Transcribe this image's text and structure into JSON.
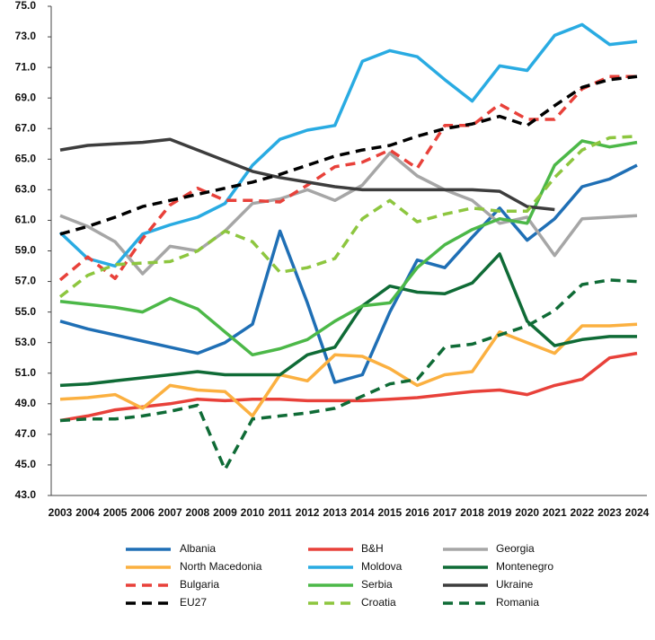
{
  "chart_data": {
    "type": "line",
    "categories": [
      "2003",
      "2004",
      "2005",
      "2006",
      "2007",
      "2008",
      "2009",
      "2010",
      "2011",
      "2012",
      "2013",
      "2014",
      "2015",
      "2016",
      "2017",
      "2018",
      "2019",
      "2020",
      "2021",
      "2022",
      "2023",
      "2024"
    ],
    "ylim": [
      43,
      75
    ],
    "yticks": [
      {
        "value": 43,
        "label": "43.0"
      },
      {
        "value": 45,
        "label": "45.0"
      },
      {
        "value": 47,
        "label": "47.0"
      },
      {
        "value": 49,
        "label": "49.0"
      },
      {
        "value": 51,
        "label": "51.0"
      },
      {
        "value": 53,
        "label": "53.0"
      },
      {
        "value": 55,
        "label": "55.0"
      },
      {
        "value": 57,
        "label": "57.0"
      },
      {
        "value": 59,
        "label": "59.0"
      },
      {
        "value": 61,
        "label": "61.0"
      },
      {
        "value": 63,
        "label": "63.0"
      },
      {
        "value": 65,
        "label": "65.0"
      },
      {
        "value": 67,
        "label": "67.0"
      },
      {
        "value": 69,
        "label": "69.0"
      },
      {
        "value": 71,
        "label": "71.0"
      },
      {
        "value": 73,
        "label": "73.0"
      },
      {
        "value": 75,
        "label": "75.0"
      }
    ],
    "grid": false,
    "legend": "bottom",
    "series": [
      {
        "name": "Albania",
        "color": "#1f6fb5",
        "dashed": false,
        "values": [
          54.4,
          53.9,
          53.5,
          53.1,
          52.7,
          52.3,
          53.0,
          54.2,
          60.3,
          55.6,
          50.4,
          50.9,
          55.0,
          58.4,
          57.9,
          59.9,
          61.8,
          59.7,
          61.1,
          63.2,
          63.7,
          64.6
        ]
      },
      {
        "name": "B&H",
        "color": "#e8413a",
        "dashed": false,
        "values": [
          47.9,
          48.2,
          48.6,
          48.8,
          49.0,
          49.3,
          49.2,
          49.3,
          49.3,
          49.2,
          49.2,
          49.2,
          49.3,
          49.4,
          49.6,
          49.8,
          49.9,
          49.6,
          50.2,
          50.6,
          52.0,
          52.3
        ]
      },
      {
        "name": "Georgia",
        "color": "#a6a6a6",
        "dashed": false,
        "values": [
          61.3,
          60.6,
          59.6,
          57.5,
          59.3,
          59.0,
          60.3,
          62.1,
          62.4,
          63.0,
          62.3,
          63.3,
          65.4,
          63.9,
          63.0,
          62.3,
          60.8,
          61.2,
          58.7,
          61.1,
          61.2,
          61.3
        ]
      },
      {
        "name": "North Macedonia",
        "color": "#fbb040",
        "dashed": false,
        "values": [
          49.3,
          49.4,
          49.6,
          48.7,
          50.2,
          49.9,
          49.8,
          48.2,
          50.9,
          50.5,
          52.2,
          52.1,
          51.3,
          50.2,
          50.9,
          51.1,
          53.7,
          53.0,
          52.3,
          54.1,
          54.1,
          54.2
        ]
      },
      {
        "name": "Moldova",
        "color": "#29abe2",
        "dashed": false,
        "values": [
          60.2,
          58.5,
          58.0,
          60.1,
          60.7,
          61.2,
          62.1,
          64.6,
          66.3,
          66.9,
          67.2,
          71.4,
          72.1,
          71.7,
          70.2,
          68.8,
          71.1,
          70.8,
          73.1,
          73.8,
          72.5,
          72.7
        ]
      },
      {
        "name": "Montenegro",
        "color": "#0f6b36",
        "dashed": false,
        "values": [
          50.2,
          50.3,
          50.5,
          50.7,
          50.9,
          51.1,
          50.9,
          50.9,
          50.9,
          52.2,
          52.7,
          55.4,
          56.7,
          56.3,
          56.2,
          56.9,
          58.8,
          54.4,
          52.8,
          53.2,
          53.4,
          53.4
        ]
      },
      {
        "name": "Bulgaria",
        "color": "#e8413a",
        "dashed": true,
        "values": [
          57.1,
          58.6,
          57.2,
          59.8,
          62.0,
          63.1,
          62.3,
          62.3,
          62.2,
          63.3,
          64.5,
          64.8,
          65.6,
          64.4,
          67.2,
          67.2,
          68.6,
          67.6,
          67.6,
          69.6,
          70.4,
          70.4
        ]
      },
      {
        "name": "Serbia",
        "color": "#4cb848",
        "dashed": false,
        "values": [
          55.7,
          55.5,
          55.3,
          55.0,
          55.9,
          55.2,
          53.7,
          52.2,
          52.6,
          53.2,
          54.4,
          55.4,
          55.6,
          57.9,
          59.4,
          60.4,
          61.1,
          60.8,
          64.6,
          66.2,
          65.8,
          66.1
        ]
      },
      {
        "name": "Ukraine",
        "color": "#3d3d3d",
        "dashed": false,
        "values": [
          65.6,
          65.9,
          66.0,
          66.1,
          66.3,
          65.6,
          64.9,
          64.2,
          63.8,
          63.5,
          63.2,
          63.0,
          63.0,
          63.0,
          63.0,
          63.0,
          62.9,
          61.9,
          61.7,
          null,
          null,
          null
        ]
      },
      {
        "name": "EU27",
        "color": "#000000",
        "dashed": true,
        "values": [
          60.1,
          60.6,
          61.2,
          61.9,
          62.3,
          62.7,
          63.1,
          63.5,
          64.0,
          64.6,
          65.2,
          65.6,
          65.9,
          66.5,
          67.0,
          67.3,
          67.8,
          67.2,
          68.5,
          69.7,
          70.2,
          70.4
        ]
      },
      {
        "name": "Croatia",
        "color": "#8dc63f",
        "dashed": true,
        "values": [
          56.0,
          57.4,
          58.1,
          58.2,
          58.3,
          59.0,
          60.3,
          59.6,
          57.6,
          57.9,
          58.5,
          61.1,
          62.3,
          60.9,
          61.4,
          61.8,
          61.6,
          61.6,
          63.8,
          65.6,
          66.4,
          66.5
        ]
      },
      {
        "name": "Romania",
        "color": "#0f6b36",
        "dashed": true,
        "values": [
          47.9,
          48.0,
          48.0,
          48.2,
          48.5,
          48.9,
          44.7,
          48.0,
          48.2,
          48.4,
          48.7,
          49.5,
          50.3,
          50.6,
          52.7,
          52.9,
          53.5,
          54.1,
          55.1,
          56.8,
          57.1,
          57.0
        ]
      }
    ]
  }
}
